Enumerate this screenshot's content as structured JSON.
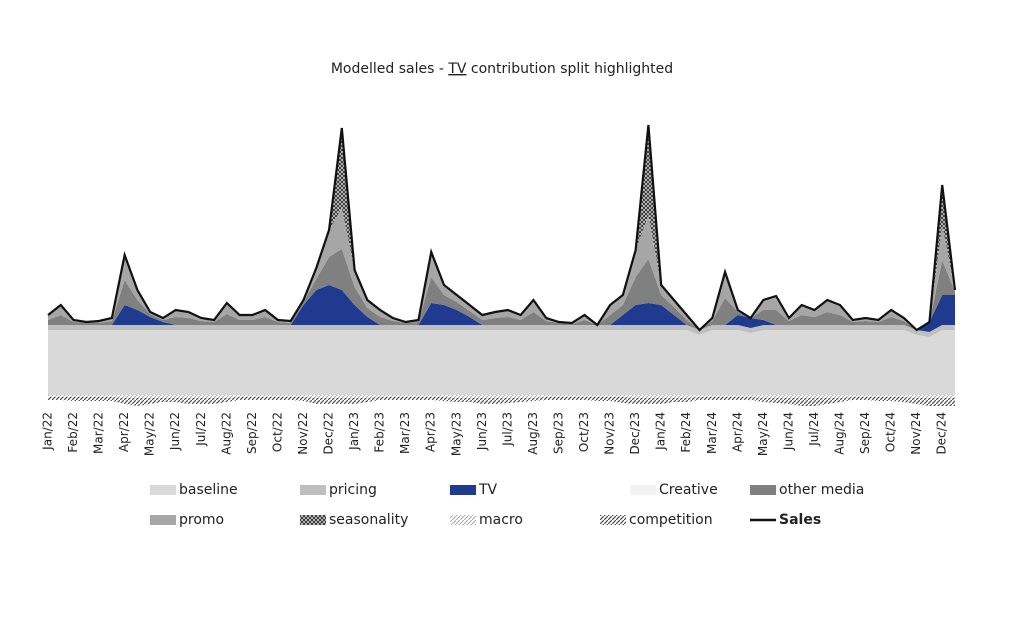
{
  "chart_data": {
    "type": "stacked_area",
    "title_parts": [
      "Modelled sales - ",
      "TV",
      " contribution split highlighted"
    ],
    "categories": [
      "Jan/22",
      null,
      "Feb/22",
      null,
      "Mar/22",
      null,
      "Apr/22",
      null,
      "May/22",
      null,
      "Jun/22",
      null,
      "Jul/22",
      null,
      "Aug/22",
      null,
      "Sep/22",
      null,
      "Oct/22",
      null,
      "Nov/22",
      null,
      "Dec/22",
      null,
      "Jan/23",
      null,
      "Feb/23",
      null,
      "Mar/23",
      null,
      "Apr/23",
      null,
      "May/23",
      null,
      "Jun/23",
      null,
      "Jul/23",
      null,
      "Aug/23",
      null,
      "Sep/23",
      null,
      "Oct/23",
      null,
      "Nov/23",
      null,
      "Dec/23",
      null,
      "Jan/24",
      null,
      "Feb/24",
      null,
      "Mar/24",
      null,
      "Apr/24",
      null,
      "May/24",
      null,
      "Jun/24",
      null,
      "Jul/24",
      null,
      "Aug/24",
      null,
      "Sep/24",
      null,
      "Oct/24",
      null,
      "Nov/24",
      null,
      "Dec/24",
      null
    ],
    "ylim": [
      -20,
      280
    ],
    "series": [
      {
        "name": "baseline",
        "color": "#d9d9d9",
        "values": [
          65,
          65,
          65,
          65,
          65,
          65,
          65,
          65,
          65,
          65,
          65,
          65,
          65,
          65,
          65,
          65,
          65,
          65,
          65,
          65,
          65,
          65,
          65,
          65,
          65,
          65,
          65,
          65,
          65,
          65,
          65,
          65,
          65,
          65,
          65,
          65,
          65,
          65,
          65,
          65,
          65,
          65,
          65,
          65,
          65,
          65,
          65,
          65,
          65,
          65,
          65,
          60,
          65,
          65,
          65,
          62,
          65,
          65,
          65,
          65,
          65,
          65,
          65,
          65,
          65,
          65,
          65,
          65,
          60,
          58,
          65,
          65
        ]
      },
      {
        "name": "pricing",
        "color": "#bfbfbf",
        "values": [
          5,
          5,
          5,
          5,
          5,
          5,
          5,
          5,
          5,
          5,
          5,
          5,
          5,
          5,
          5,
          5,
          5,
          5,
          5,
          5,
          5,
          5,
          5,
          5,
          5,
          5,
          5,
          5,
          5,
          5,
          5,
          5,
          5,
          5,
          5,
          5,
          5,
          5,
          5,
          5,
          5,
          5,
          5,
          5,
          5,
          5,
          5,
          5,
          5,
          5,
          5,
          5,
          5,
          5,
          5,
          5,
          5,
          5,
          5,
          5,
          5,
          5,
          5,
          5,
          5,
          5,
          5,
          5,
          5,
          5,
          5,
          5
        ]
      },
      {
        "name": "TV",
        "color": "#1f3a8f",
        "values": [
          0,
          0,
          0,
          0,
          0,
          0,
          20,
          15,
          8,
          3,
          0,
          0,
          0,
          0,
          0,
          0,
          0,
          0,
          0,
          0,
          20,
          35,
          40,
          35,
          20,
          8,
          0,
          0,
          0,
          0,
          22,
          20,
          15,
          8,
          0,
          0,
          0,
          0,
          0,
          0,
          0,
          0,
          0,
          0,
          0,
          10,
          20,
          22,
          20,
          10,
          0,
          0,
          0,
          0,
          10,
          10,
          5,
          0,
          0,
          0,
          0,
          0,
          0,
          0,
          0,
          0,
          0,
          0,
          0,
          10,
          30,
          30
        ]
      },
      {
        "name": "Creative",
        "color": "#f2f2f2",
        "text_color": "#bdbdbd",
        "values": [
          0,
          0,
          0,
          0,
          0,
          0,
          0,
          0,
          0,
          0,
          0,
          0,
          0,
          0,
          0,
          0,
          0,
          0,
          0,
          0,
          0,
          0,
          0,
          0,
          0,
          0,
          0,
          0,
          0,
          0,
          0,
          0,
          0,
          0,
          0,
          0,
          0,
          0,
          0,
          0,
          0,
          0,
          0,
          0,
          0,
          0,
          0,
          0,
          0,
          0,
          0,
          0,
          0,
          0,
          0,
          0,
          0,
          0,
          0,
          0,
          0,
          0,
          0,
          0,
          0,
          0,
          0,
          0,
          0,
          0,
          0,
          0
        ]
      },
      {
        "name": "other media",
        "color": "#808080",
        "values": [
          5,
          10,
          3,
          2,
          2,
          4,
          25,
          10,
          3,
          2,
          8,
          7,
          4,
          3,
          11,
          5,
          5,
          8,
          3,
          2,
          3,
          11,
          28,
          41,
          18,
          9,
          8,
          4,
          2,
          3,
          26,
          10,
          8,
          6,
          5,
          7,
          8,
          5,
          13,
          4,
          2,
          1,
          5,
          0,
          10,
          10,
          28,
          44,
          10,
          8,
          5,
          0,
          4,
          27,
          3,
          0,
          10,
          15,
          4,
          10,
          8,
          13,
          10,
          3,
          4,
          3,
          8,
          4,
          0,
          0,
          35,
          3
        ]
      },
      {
        "name": "promo",
        "color": "#a6a6a6",
        "values": [
          5,
          10,
          2,
          1,
          2,
          3,
          25,
          10,
          2,
          2,
          7,
          6,
          3,
          2,
          11,
          5,
          5,
          7,
          2,
          2,
          2,
          11,
          27,
          41,
          17,
          8,
          7,
          3,
          1,
          2,
          25,
          10,
          7,
          6,
          5,
          6,
          7,
          5,
          12,
          3,
          1,
          1,
          5,
          0,
          10,
          10,
          27,
          44,
          10,
          7,
          5,
          0,
          3,
          26,
          2,
          0,
          10,
          14,
          3,
          10,
          7,
          12,
          10,
          2,
          3,
          2,
          7,
          3,
          0,
          0,
          35,
          2
        ]
      },
      {
        "name": "seasonality",
        "color": "#3a3a3a",
        "pattern": "crosshatch",
        "values": [
          0,
          0,
          0,
          0,
          0,
          0,
          0,
          0,
          0,
          0,
          0,
          0,
          0,
          0,
          0,
          0,
          0,
          0,
          0,
          0,
          0,
          0,
          0,
          80,
          0,
          0,
          0,
          0,
          0,
          0,
          0,
          0,
          0,
          0,
          0,
          0,
          0,
          0,
          0,
          0,
          0,
          0,
          0,
          0,
          0,
          0,
          0,
          90,
          0,
          0,
          0,
          0,
          0,
          0,
          0,
          0,
          0,
          0,
          0,
          0,
          0,
          0,
          0,
          0,
          0,
          0,
          0,
          0,
          0,
          0,
          40,
          0
        ]
      },
      {
        "name": "macro",
        "color": "#b5b5b5",
        "pattern": "hatch",
        "values": [
          -2,
          -2,
          -2,
          -2,
          -2,
          -2,
          -3,
          -3,
          -3,
          -3,
          -3,
          -3,
          -3,
          -3,
          -3,
          -2,
          -2,
          -2,
          -2,
          -2,
          -2,
          -3,
          -3,
          -3,
          -3,
          -3,
          -2,
          -2,
          -2,
          -2,
          -2,
          -2,
          -3,
          -3,
          -3,
          -3,
          -3,
          -3,
          -3,
          -2,
          -2,
          -2,
          -2,
          -2,
          -2,
          -2,
          -3,
          -3,
          -3,
          -3,
          -3,
          -2,
          -2,
          -2,
          -2,
          -2,
          -3,
          -3,
          -3,
          -3,
          -3,
          -3,
          -3,
          -2,
          -2,
          -2,
          -2,
          -2,
          -3,
          -3,
          -3,
          -3
        ]
      },
      {
        "name": "competition",
        "color": "#6e6e6e",
        "pattern": "hatch",
        "values": [
          -3,
          -3,
          -4,
          -4,
          -4,
          -4,
          -6,
          -8,
          -6,
          -4,
          -4,
          -6,
          -6,
          -6,
          -4,
          -3,
          -3,
          -3,
          -3,
          -3,
          -4,
          -6,
          -6,
          -6,
          -6,
          -4,
          -3,
          -3,
          -3,
          -3,
          -3,
          -4,
          -4,
          -4,
          -6,
          -6,
          -5,
          -4,
          -3,
          -3,
          -3,
          -3,
          -3,
          -4,
          -4,
          -6,
          -6,
          -6,
          -6,
          -4,
          -4,
          -3,
          -3,
          -3,
          -3,
          -3,
          -4,
          -5,
          -6,
          -8,
          -8,
          -6,
          -4,
          -3,
          -3,
          -4,
          -4,
          -5,
          -6,
          -8,
          -8,
          -8
        ]
      },
      {
        "name": "Sales",
        "color": "#111111",
        "kind": "line",
        "values": [
          80,
          90,
          75,
          73,
          74,
          77,
          140,
          105,
          83,
          77,
          85,
          83,
          77,
          75,
          92,
          80,
          80,
          85,
          75,
          74,
          95,
          127,
          165,
          267,
          125,
          95,
          85,
          77,
          73,
          75,
          143,
          110,
          100,
          90,
          80,
          83,
          85,
          80,
          95,
          77,
          73,
          72,
          80,
          70,
          90,
          100,
          145,
          270,
          110,
          95,
          80,
          65,
          77,
          123,
          85,
          77,
          95,
          99,
          77,
          90,
          85,
          95,
          90,
          75,
          77,
          75,
          85,
          77,
          65,
          73,
          210,
          105
        ]
      }
    ]
  }
}
